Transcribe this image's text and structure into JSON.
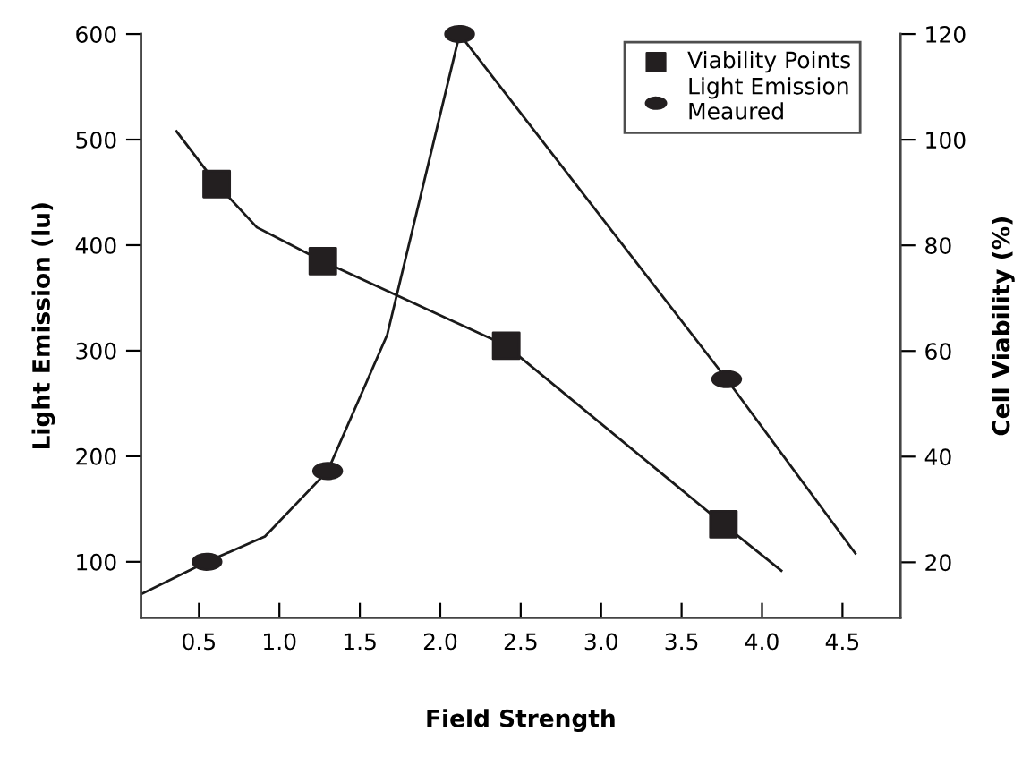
{
  "chart_data": {
    "type": "line",
    "xlabel": "Field Strength",
    "ylabel": "Light Emission (lu)",
    "y2label": "Cell Viability (%)",
    "xlim": [
      0.14,
      4.86
    ],
    "xticks": [
      {
        "value": 0.5,
        "label": "0.5"
      },
      {
        "value": 1,
        "label": "1.0"
      },
      {
        "value": 1.5,
        "label": "1.5"
      },
      {
        "value": 2,
        "label": "2.0"
      },
      {
        "value": 2.5,
        "label": "2.5"
      },
      {
        "value": 3,
        "label": "3.0"
      },
      {
        "value": 3.5,
        "label": "3.5"
      },
      {
        "value": 4,
        "label": "4.0"
      },
      {
        "value": 4.5,
        "label": "4.5"
      }
    ],
    "ylim": [
      47,
      600
    ],
    "yticks": [
      100,
      200,
      300,
      400,
      500,
      600
    ],
    "y2lim": [
      9.5,
      120
    ],
    "y2ticks": [
      20,
      40,
      60,
      80,
      100,
      120
    ],
    "legend": "top right",
    "grid": false,
    "series": [
      {
        "color": "#1a1a1a",
        "x": [
          0.15,
          0.55,
          0.91,
          1.3,
          1.67,
          2.12,
          3.78,
          4.58
        ],
        "values": [
          70,
          100,
          124,
          186,
          315,
          600,
          273,
          108
        ]
      },
      {
        "axis": "y2",
        "color": "#1a1a1a",
        "x": [
          0.36,
          0.61,
          0.86,
          1.27,
          2.41,
          3.76,
          4.12
        ],
        "values": [
          101.6,
          91.6,
          83.4,
          77,
          61,
          27.2,
          18.4
        ]
      },
      {
        "type": "scatter",
        "name": "Viability Points",
        "axis": "y2",
        "marker": "square",
        "color": "#231f20",
        "x": [
          0.61,
          1.27,
          2.41,
          3.76
        ],
        "values": [
          91.6,
          77,
          61,
          27.2
        ]
      },
      {
        "type": "scatter",
        "name": "Light Emission\nMeaured",
        "marker": "circle",
        "color": "#231f20",
        "x": [
          0.55,
          1.3,
          2.12,
          3.78
        ],
        "values": [
          100,
          186,
          600,
          273
        ]
      }
    ]
  }
}
